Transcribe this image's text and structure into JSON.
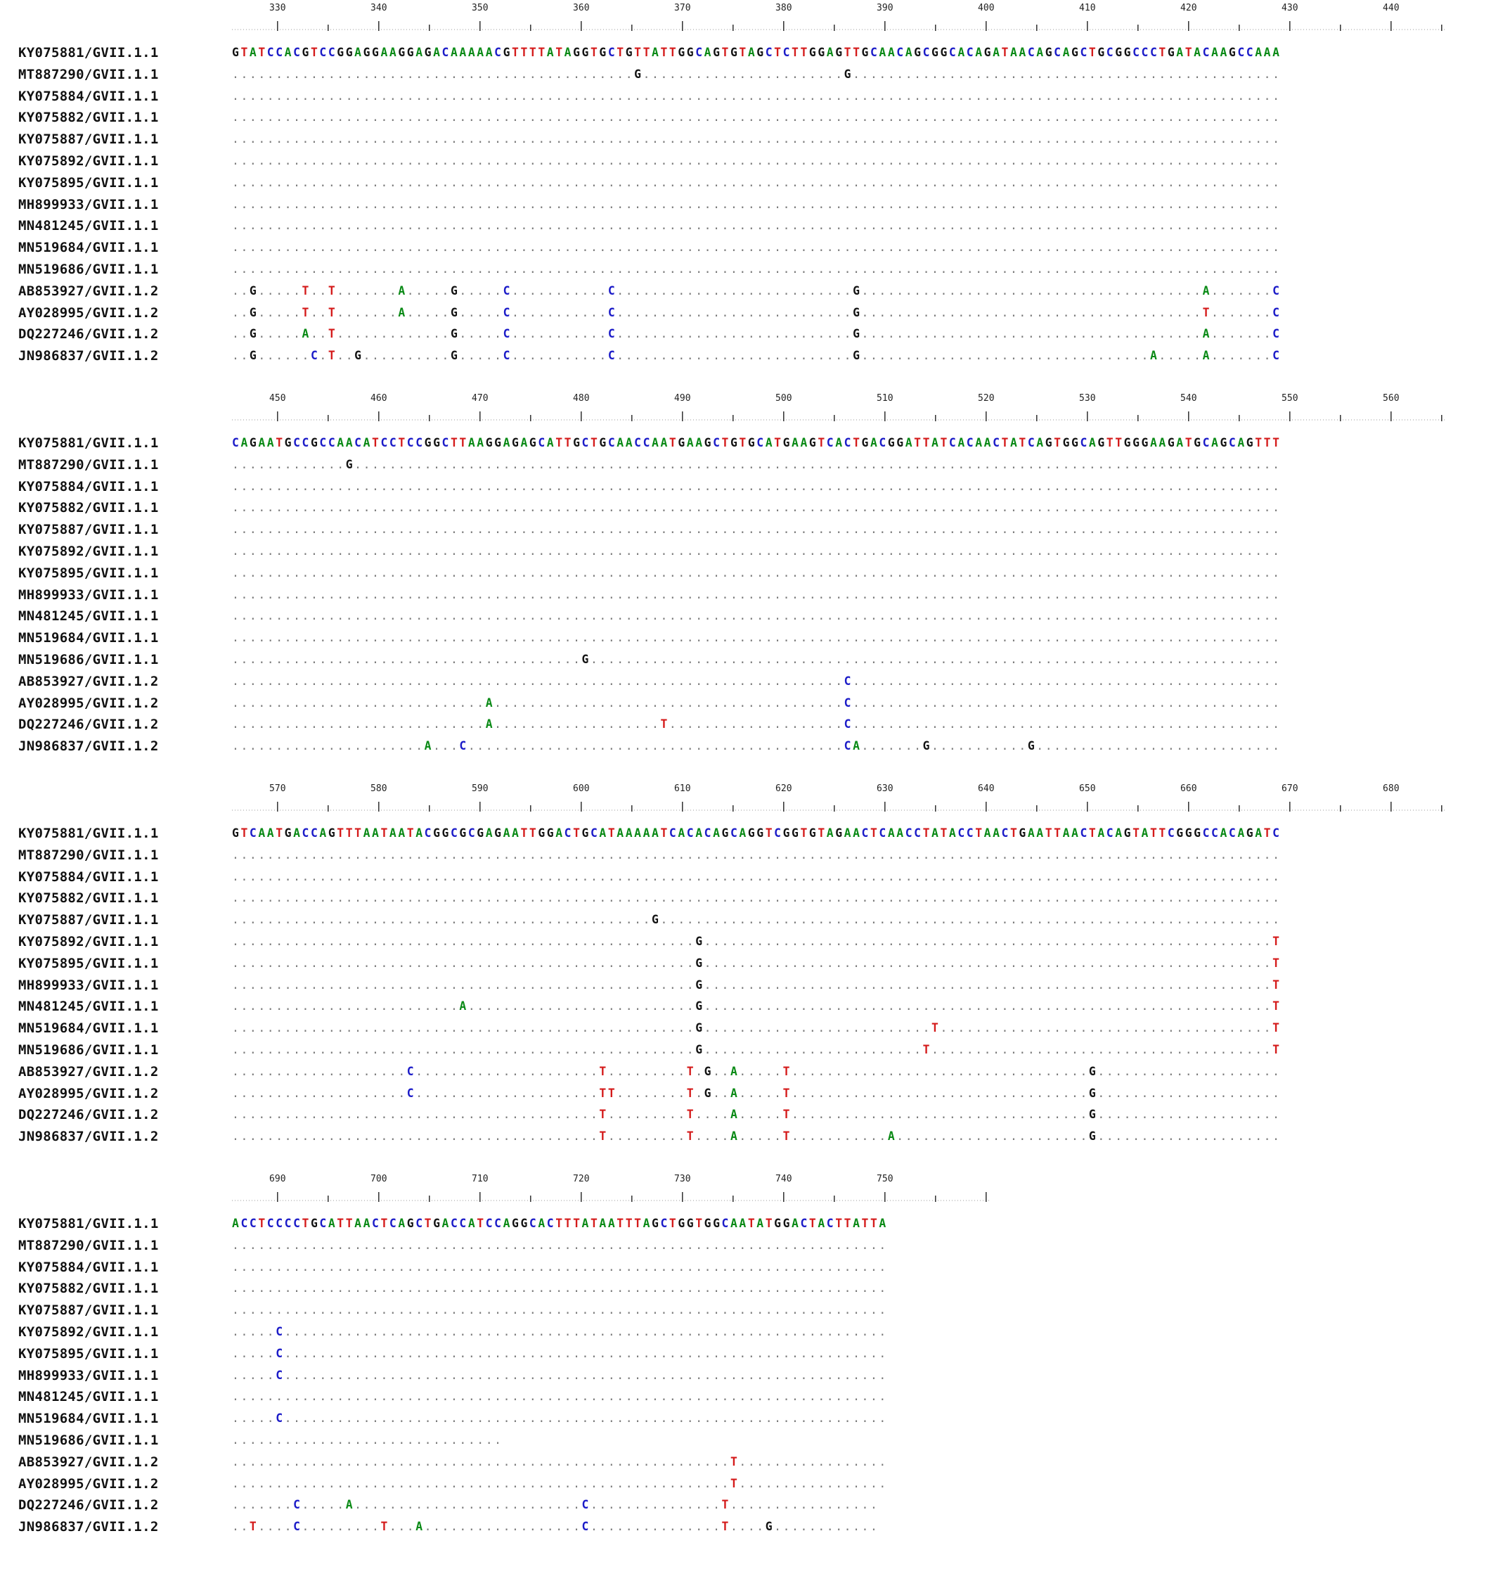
{
  "alignment": {
    "blocks": [
      {
        "ruler_start": 326,
        "ticks": [
          "330",
          "340",
          "350",
          "360",
          "370",
          "380",
          "390",
          "400",
          "410",
          "420",
          "430",
          "440"
        ],
        "rows": [
          {
            "label": "KY075881/GVII.1.1",
            "seq": "GTATCCACGTCCGGAGGAAGGAGACAAAAACGTTTTATAGGTGCTGTTATTGGCAGTGTAGCTCTTGGAGTTGCAACAGCGGCACAGATAACAGCAGCTGCGGCCCTGATACAAGCCAAA"
          },
          {
            "label": "MT887290/GVII.1.1",
            "seq": "..............................................G.......................G................................................."
          },
          {
            "label": "KY075884/GVII.1.1",
            "seq": "........................................................................................................................"
          },
          {
            "label": "KY075882/GVII.1.1",
            "seq": "........................................................................................................................"
          },
          {
            "label": "KY075887/GVII.1.1",
            "seq": "........................................................................................................................"
          },
          {
            "label": "KY075892/GVII.1.1",
            "seq": "........................................................................................................................"
          },
          {
            "label": "KY075895/GVII.1.1",
            "seq": "........................................................................................................................"
          },
          {
            "label": "MH899933/GVII.1.1",
            "seq": "........................................................................................................................"
          },
          {
            "label": "MN481245/GVII.1.1",
            "seq": "........................................................................................................................"
          },
          {
            "label": "MN519684/GVII.1.1",
            "seq": "........................................................................................................................"
          },
          {
            "label": "MN519686/GVII.1.1",
            "seq": "........................................................................................................................"
          },
          {
            "label": "AB853927/GVII.1.2",
            "seq": "..G.....T..T.......A.....G.....C...........C...........................G.......................................A.......C"
          },
          {
            "label": "AY028995/GVII.1.2",
            "seq": "..G.....T..T.......A.....G.....C...........C...........................G.......................................T.......C"
          },
          {
            "label": "DQ227246/GVII.1.2",
            "seq": "..G.....A..T.............G.....C...........C...........................G.......................................A.......C"
          },
          {
            "label": "JN986837/GVII.1.2",
            "seq": "..G......C.T..G..........G.....C...........C...........................G.................................A.....A.......C"
          }
        ]
      },
      {
        "ruler_start": 446,
        "ticks": [
          "450",
          "460",
          "470",
          "480",
          "490",
          "500",
          "510",
          "520",
          "530",
          "540",
          "550",
          "560"
        ],
        "rows": [
          {
            "label": "KY075881/GVII.1.1",
            "seq": "CAGAATGCCGCCAACATCCTCCGGCTTAAGGAGAGCATTGCTGCAACCAATGAAGCTGTGCATGAAGTCACTGACGGATTATCACAACTATCAGTGGCAGTTGGGAAGATGCAGCAGTTT"
          },
          {
            "label": "MT887290/GVII.1.1",
            "seq": ".............G.........................................................................................................."
          },
          {
            "label": "KY075884/GVII.1.1",
            "seq": "........................................................................................................................"
          },
          {
            "label": "KY075882/GVII.1.1",
            "seq": "........................................................................................................................"
          },
          {
            "label": "KY075887/GVII.1.1",
            "seq": "........................................................................................................................"
          },
          {
            "label": "KY075892/GVII.1.1",
            "seq": "........................................................................................................................"
          },
          {
            "label": "KY075895/GVII.1.1",
            "seq": "........................................................................................................................"
          },
          {
            "label": "MH899933/GVII.1.1",
            "seq": "........................................................................................................................"
          },
          {
            "label": "MN481245/GVII.1.1",
            "seq": "........................................................................................................................"
          },
          {
            "label": "MN519684/GVII.1.1",
            "seq": "........................................................................................................................"
          },
          {
            "label": "MN519686/GVII.1.1",
            "seq": "........................................G..............................................................................."
          },
          {
            "label": "AB853927/GVII.1.2",
            "seq": "......................................................................C................................................."
          },
          {
            "label": "AY028995/GVII.1.2",
            "seq": ".............................A........................................C................................................."
          },
          {
            "label": "DQ227246/GVII.1.2",
            "seq": ".............................A...................T....................C................................................."
          },
          {
            "label": "JN986837/GVII.1.2",
            "seq": "......................A...C...........................................CA.......G...........G............................"
          }
        ]
      },
      {
        "ruler_start": 566,
        "ticks": [
          "570",
          "580",
          "590",
          "600",
          "610",
          "620",
          "630",
          "640",
          "650",
          "660",
          "670",
          "680"
        ],
        "rows": [
          {
            "label": "KY075881/GVII.1.1",
            "seq": "GTCAATGACCAGTTTAATAATACGGCGCGAGAATTGGACTGCATAAAAATCACACAGCAGGTCGGTGTAGAACTCAACCTATACCTAACTGAATTAACTACAGTATTCGGGCCACAGATC"
          },
          {
            "label": "MT887290/GVII.1.1",
            "seq": "........................................................................................................................"
          },
          {
            "label": "KY075884/GVII.1.1",
            "seq": "........................................................................................................................"
          },
          {
            "label": "KY075882/GVII.1.1",
            "seq": "........................................................................................................................"
          },
          {
            "label": "KY075887/GVII.1.1",
            "seq": "................................................G......................................................................."
          },
          {
            "label": "KY075892/GVII.1.1",
            "seq": ".....................................................G.................................................................T"
          },
          {
            "label": "KY075895/GVII.1.1",
            "seq": ".....................................................G.................................................................T"
          },
          {
            "label": "MH899933/GVII.1.1",
            "seq": ".....................................................G.................................................................T"
          },
          {
            "label": "MN481245/GVII.1.1",
            "seq": "..........................A..........................G.................................................................T"
          },
          {
            "label": "MN519684/GVII.1.1",
            "seq": ".....................................................G..........................T......................................T"
          },
          {
            "label": "MN519686/GVII.1.1",
            "seq": ".....................................................G.........................T.......................................T"
          },
          {
            "label": "AB853927/GVII.1.2",
            "seq": "....................C.....................T.........T.G..A.....T..................................G....................."
          },
          {
            "label": "AY028995/GVII.1.2",
            "seq": "....................C.....................TT........T.G..A.....T..................................G....................."
          },
          {
            "label": "DQ227246/GVII.1.2",
            "seq": "..........................................T.........T....A.....T..................................G....................."
          },
          {
            "label": "JN986837/GVII.1.2",
            "seq": "..........................................T.........T....A.....T...........A......................G....................."
          }
        ]
      },
      {
        "ruler_start": 686,
        "ticks": [
          "690",
          "700",
          "710",
          "720",
          "730",
          "740",
          "750"
        ],
        "rows": [
          {
            "label": "KY075881/GVII.1.1",
            "seq": "ACCTCCCCTGCATTAACTCAGCTGACCATCCAGGCACTTTATAATTTAGCTGGTGGCAATATGGACTACTTATTA"
          },
          {
            "label": "MT887290/GVII.1.1",
            "seq": "..........................................................................."
          },
          {
            "label": "KY075884/GVII.1.1",
            "seq": "..........................................................................."
          },
          {
            "label": "KY075882/GVII.1.1",
            "seq": "..........................................................................."
          },
          {
            "label": "KY075887/GVII.1.1",
            "seq": "..........................................................................."
          },
          {
            "label": "KY075892/GVII.1.1",
            "seq": ".....C....................................................................."
          },
          {
            "label": "KY075895/GVII.1.1",
            "seq": ".....C....................................................................."
          },
          {
            "label": "MH899933/GVII.1.1",
            "seq": ".....C....................................................................."
          },
          {
            "label": "MN481245/GVII.1.1",
            "seq": "..........................................................................."
          },
          {
            "label": "MN519684/GVII.1.1",
            "seq": ".....C....................................................................."
          },
          {
            "label": "MN519686/GVII.1.1",
            "seq": "..............................."
          },
          {
            "label": "AB853927/GVII.1.2",
            "seq": ".........................................................T................."
          },
          {
            "label": "AY028995/GVII.1.2",
            "seq": ".........................................................T................."
          },
          {
            "label": "DQ227246/GVII.1.2",
            "seq": ".......C.....A..........................C...............T................."
          },
          {
            "label": "JN986837/GVII.1.2",
            "seq": "..T....C.........T...A..................C...............T....G............"
          }
        ]
      }
    ],
    "colors": {
      "A": "#0a8a16",
      "C": "#1c1cc8",
      "G": "#141414",
      "T": "#d41a1a",
      "dot": "#7a7a7a"
    }
  }
}
